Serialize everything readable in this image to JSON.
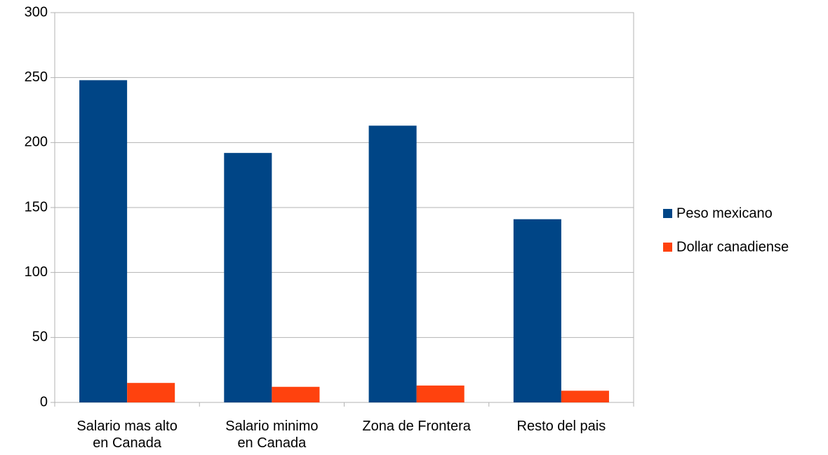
{
  "chart_data": {
    "type": "bar",
    "categories": [
      "Salario mas alto\nen Canada",
      "Salario minimo\nen Canada",
      "Zona de Frontera",
      "Resto del pais"
    ],
    "series": [
      {
        "name": "Peso mexicano",
        "color": "#004586",
        "values": [
          248,
          192,
          213,
          141
        ]
      },
      {
        "name": "Dollar canadiense",
        "color": "#ff420e",
        "values": [
          15,
          12,
          13,
          9
        ]
      }
    ],
    "ylim": [
      0,
      300
    ],
    "yticks": [
      0,
      50,
      100,
      150,
      200,
      250,
      300
    ],
    "grid": true,
    "legend": "right"
  }
}
